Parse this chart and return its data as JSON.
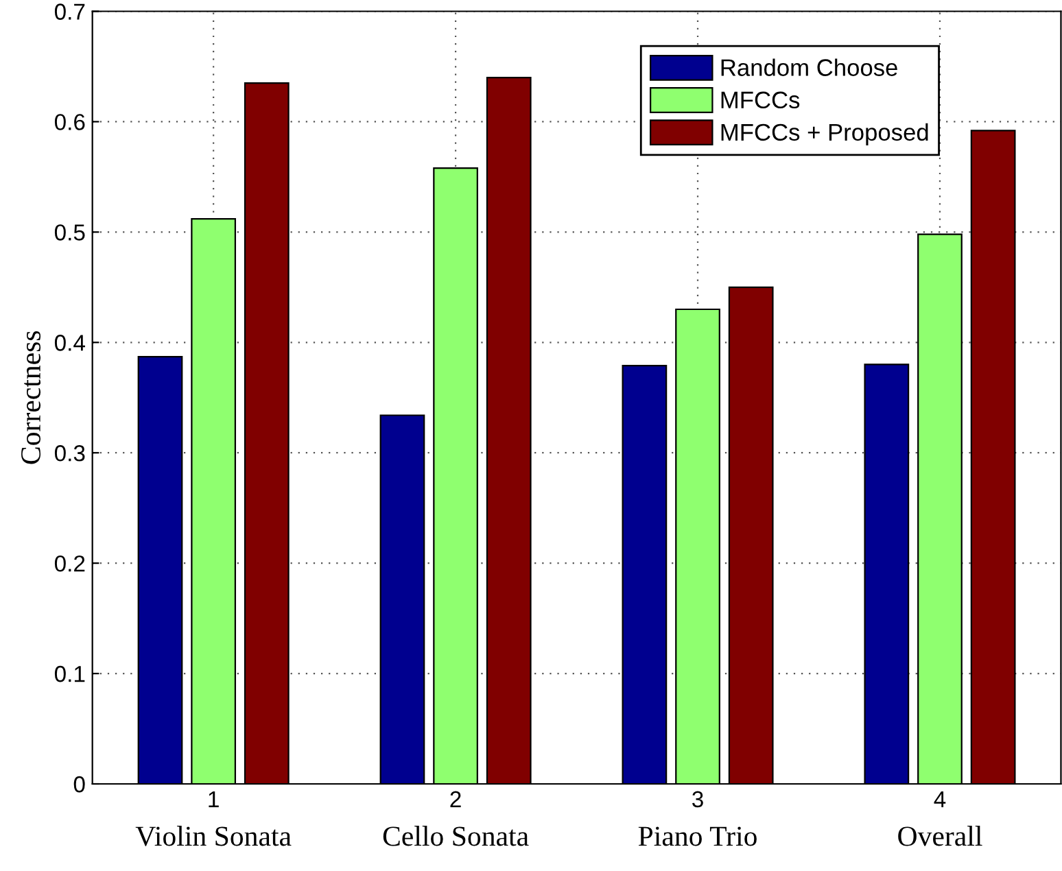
{
  "chart_data": {
    "type": "bar",
    "ylabel": "Correctness",
    "x": [
      1,
      2,
      3,
      4
    ],
    "xlim": [
      0.5,
      4.5
    ],
    "xticks": [
      1,
      2,
      3,
      4
    ],
    "ylim": [
      0,
      0.7
    ],
    "yticks": [
      0,
      0.1,
      0.2,
      0.3,
      0.4,
      0.5,
      0.6,
      0.7
    ],
    "series": [
      {
        "name": "Random Choose",
        "color": "#00008f",
        "values": [
          0.387,
          0.334,
          0.379,
          0.38
        ]
      },
      {
        "name": "MFCCs",
        "color": "#8fff6f",
        "values": [
          0.512,
          0.558,
          0.43,
          0.498
        ]
      },
      {
        "name": "MFCCs + Proposed",
        "color": "#800000",
        "values": [
          0.635,
          0.64,
          0.45,
          0.592
        ]
      }
    ],
    "annotations": [
      "Violin Sonata",
      "Cello Sonata",
      "Piano Trio",
      "Overall"
    ],
    "grid": true,
    "legend": "top right"
  }
}
